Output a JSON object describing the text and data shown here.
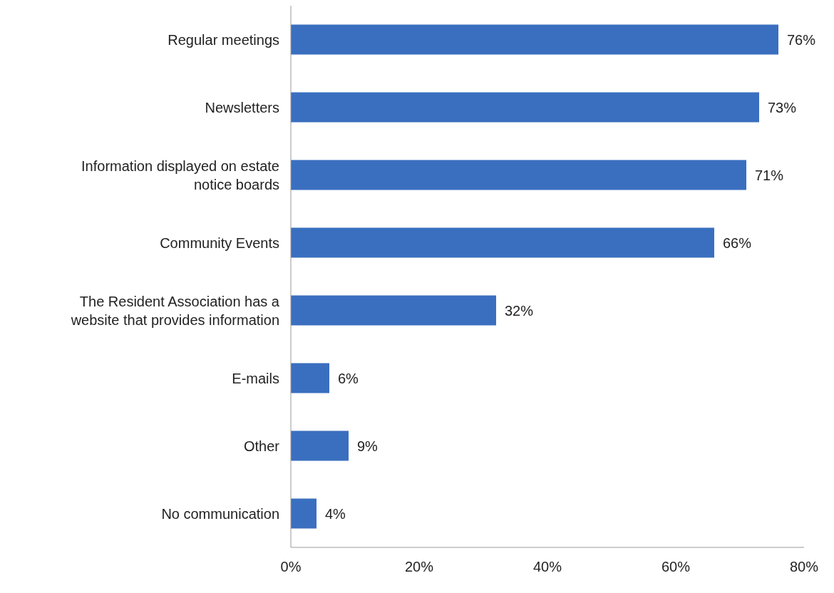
{
  "chart_data": {
    "type": "bar",
    "orientation": "horizontal",
    "categories": [
      "Regular meetings",
      "Newsletters",
      "Information displayed on estate notice boards",
      "Community Events",
      "The Resident Association has a website that provides information",
      "E-mails",
      "Other",
      "No communication"
    ],
    "values": [
      76,
      73,
      71,
      66,
      32,
      6,
      9,
      4
    ],
    "value_labels": [
      "76%",
      "73%",
      "71%",
      "66%",
      "32%",
      "6%",
      "9%",
      "4%"
    ],
    "color": "#3a6fbf",
    "xlim": [
      0,
      80
    ],
    "xticks": [
      {
        "value": 0,
        "label": "0%"
      },
      {
        "value": 20,
        "label": "20%"
      },
      {
        "value": 40,
        "label": "40%"
      },
      {
        "value": 60,
        "label": "60%"
      },
      {
        "value": 80,
        "label": "80%"
      }
    ],
    "grid": false,
    "legend": false
  }
}
